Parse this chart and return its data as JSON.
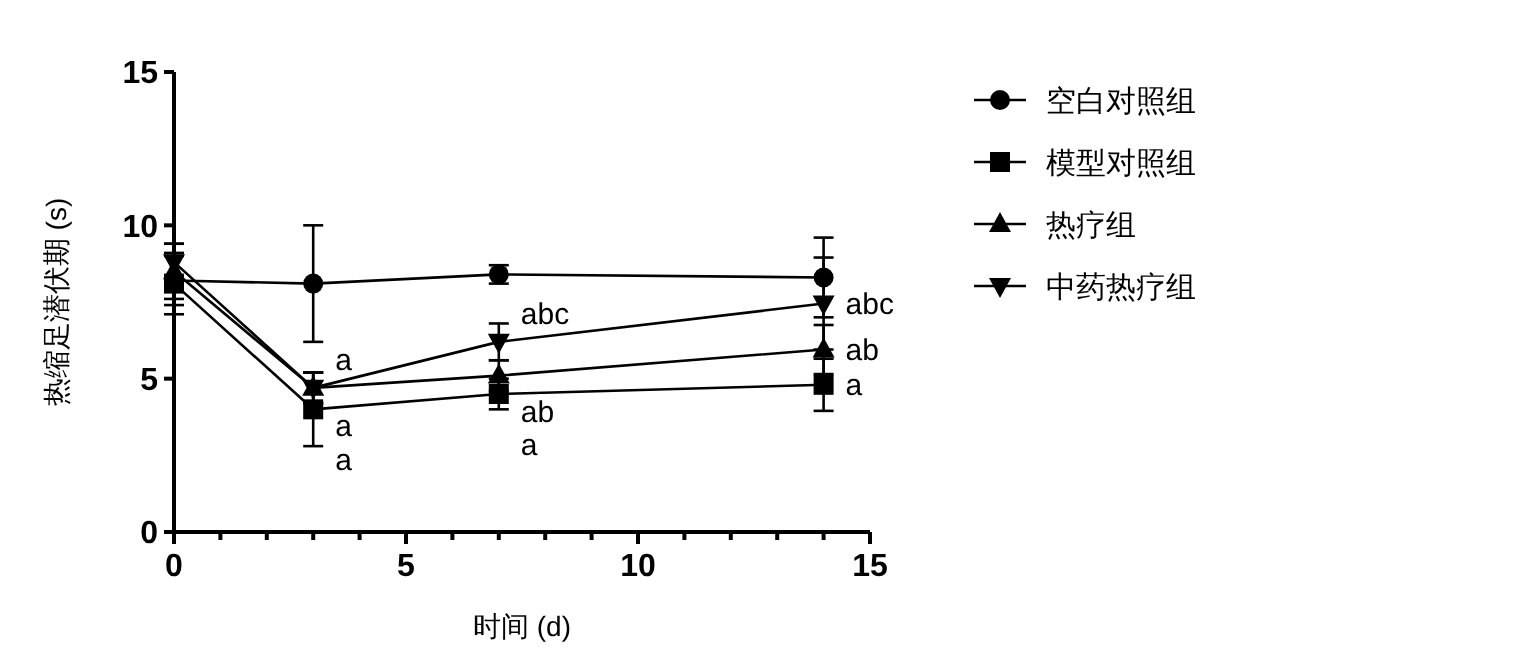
{
  "chart_data": {
    "type": "line",
    "xlabel": "时间 (d)",
    "ylabel": "热缩足潜伏期 (s)",
    "x": [
      0,
      3,
      7,
      14
    ],
    "xlim": [
      0,
      15
    ],
    "xticks": [
      0,
      {
        "value": 1,
        "label": null
      },
      {
        "value": 2,
        "label": null
      },
      {
        "value": 3,
        "label": null
      },
      {
        "value": 4,
        "label": null
      },
      5,
      {
        "value": 6,
        "label": null
      },
      {
        "value": 7,
        "label": null
      },
      {
        "value": 8,
        "label": null
      },
      {
        "value": 9,
        "label": null
      },
      10,
      {
        "value": 11,
        "label": null
      },
      {
        "value": 12,
        "label": null
      },
      {
        "value": 13,
        "label": null
      },
      {
        "value": 14,
        "label": null
      },
      15
    ],
    "ylim": [
      0,
      15
    ],
    "yticks": [
      0,
      5,
      10,
      15
    ],
    "grid": false,
    "legend": "right",
    "line_style": "solid",
    "color": "#000000",
    "series": [
      {
        "name": "空白对照组",
        "color": "#000000",
        "marker": "circle",
        "values": [
          8.2,
          8.1,
          8.4,
          8.3
        ],
        "errors": [
          0.8,
          1.9,
          0.3,
          1.3
        ]
      },
      {
        "name": "模型对照组",
        "color": "#000000",
        "marker": "square",
        "values": [
          8.1,
          4.0,
          4.5,
          4.8
        ],
        "errors": [
          1.0,
          1.2,
          0.5,
          0.85
        ]
      },
      {
        "name": "热疗组",
        "color": "#000000",
        "marker": "triangle",
        "values": [
          8.5,
          4.7,
          5.1,
          5.95
        ],
        "errors": [
          0.9,
          0.5,
          0.5,
          0.8
        ]
      },
      {
        "name": "中药热疗组",
        "color": "#000000",
        "marker": "triangle-down",
        "values": [
          8.8,
          4.7,
          6.2,
          7.45
        ],
        "errors": [
          0.6,
          0.5,
          0.6,
          1.5
        ]
      }
    ],
    "annotations": [
      {
        "text": "a",
        "x": 3,
        "y": 4.7
      },
      {
        "text": "a",
        "x": 3,
        "y": 4.7
      },
      {
        "text": "a",
        "x": 3,
        "y": 4.0
      },
      {
        "text": "abc",
        "x": 7,
        "y": 6.2
      },
      {
        "text": "ab",
        "x": 7,
        "y": 5.1
      },
      {
        "text": "a",
        "x": 7,
        "y": 4.5
      },
      {
        "text": "abc",
        "x": 14,
        "y": 7.45
      },
      {
        "text": "ab",
        "x": 14,
        "y": 5.95
      },
      {
        "text": "a",
        "x": 14,
        "y": 4.8
      }
    ]
  }
}
